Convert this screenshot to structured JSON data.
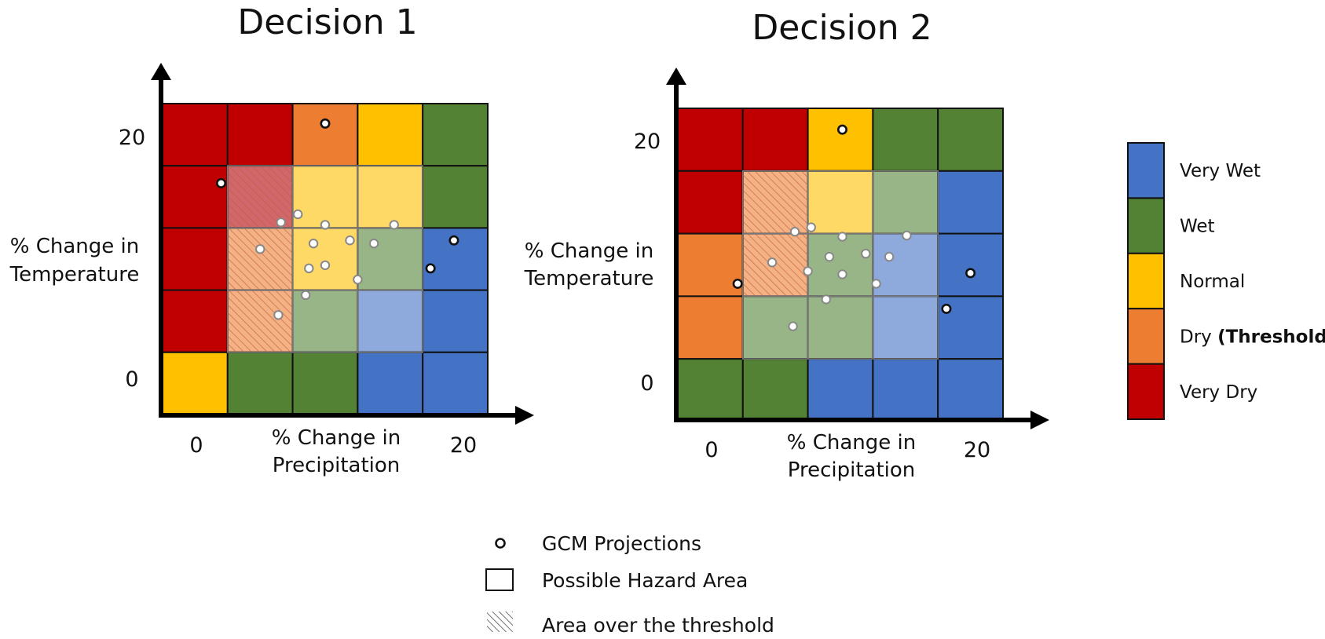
{
  "colors": {
    "very_wet": "#4472C4",
    "wet": "#548235",
    "normal": "#FFC000",
    "dry_threshold": "#ED7D31",
    "very_dry": "#C00000",
    "very_wet_faded": "#8EA9DB",
    "wet_faded": "#98B587",
    "normal_faded": "#FFD966",
    "dry_faded": "#F4B183",
    "very_dry_faded": "#D2676B"
  },
  "decisions": [
    {
      "title": "Decision 1",
      "ylabel_line1": "% Change in",
      "ylabel_line2": "Temperature",
      "xlabel_line1": "% Change in",
      "xlabel_line2": "Precipitation",
      "x_ticks": [
        "0",
        "20"
      ],
      "y_ticks": [
        "0",
        "20"
      ],
      "grid": [
        [
          "very_dry",
          "very_dry",
          "dry_threshold",
          "normal",
          "wet"
        ],
        [
          "very_dry",
          "very_dry_faded",
          "normal_faded",
          "normal_faded",
          "wet"
        ],
        [
          "very_dry",
          "dry_faded",
          "normal_faded",
          "wet_faded",
          "very_wet"
        ],
        [
          "very_dry",
          "dry_faded",
          "wet_faded",
          "very_wet_faded",
          "very_wet"
        ],
        [
          "normal",
          "wet",
          "wet",
          "very_wet",
          "very_wet"
        ]
      ],
      "hazard_cells": [
        [
          1,
          1
        ],
        [
          1,
          2
        ],
        [
          1,
          3
        ],
        [
          2,
          1
        ],
        [
          2,
          2
        ],
        [
          2,
          3
        ],
        [
          3,
          1
        ],
        [
          3,
          2
        ],
        [
          3,
          3
        ]
      ],
      "threshold_cells": [
        [
          1,
          1
        ],
        [
          2,
          1
        ],
        [
          3,
          1
        ]
      ],
      "projections_outside": [
        [
          0.9,
          3.72
        ],
        [
          2.5,
          4.68
        ],
        [
          4.48,
          2.8
        ],
        [
          4.12,
          2.35
        ]
      ],
      "projections_inside": [
        [
          1.82,
          3.09
        ],
        [
          2.08,
          3.22
        ],
        [
          2.5,
          3.05
        ],
        [
          3.56,
          3.05
        ],
        [
          1.5,
          2.66
        ],
        [
          2.32,
          2.75
        ],
        [
          2.88,
          2.8
        ],
        [
          3.25,
          2.75
        ],
        [
          2.25,
          2.35
        ],
        [
          2.5,
          2.4
        ],
        [
          3.0,
          2.17
        ],
        [
          2.2,
          1.92
        ],
        [
          1.78,
          1.6
        ]
      ]
    },
    {
      "title": "Decision 2",
      "ylabel_line1": "% Change in",
      "ylabel_line2": "Temperature",
      "xlabel_line1": "% Change in",
      "xlabel_line2": "Precipitation",
      "x_ticks": [
        "0",
        "20"
      ],
      "y_ticks": [
        "0",
        "20"
      ],
      "grid": [
        [
          "very_dry",
          "very_dry",
          "normal",
          "wet",
          "wet"
        ],
        [
          "very_dry",
          "dry_faded",
          "normal_faded",
          "wet_faded",
          "very_wet"
        ],
        [
          "dry_threshold",
          "dry_faded",
          "wet_faded",
          "very_wet_faded",
          "very_wet"
        ],
        [
          "dry_threshold",
          "wet_faded",
          "wet_faded",
          "very_wet_faded",
          "very_wet"
        ],
        [
          "wet",
          "wet",
          "very_wet",
          "very_wet",
          "very_wet"
        ]
      ],
      "hazard_cells": [
        [
          1,
          1
        ],
        [
          1,
          2
        ],
        [
          1,
          3
        ],
        [
          2,
          1
        ],
        [
          2,
          2
        ],
        [
          2,
          3
        ],
        [
          3,
          1
        ],
        [
          3,
          2
        ],
        [
          3,
          3
        ]
      ],
      "threshold_cells": [
        [
          1,
          1
        ],
        [
          2,
          1
        ]
      ],
      "projections_outside": [
        [
          0.92,
          2.2
        ],
        [
          2.53,
          4.66
        ],
        [
          4.5,
          2.37
        ],
        [
          4.13,
          1.8
        ]
      ],
      "projections_inside": [
        [
          1.8,
          3.03
        ],
        [
          2.05,
          3.1
        ],
        [
          2.53,
          2.95
        ],
        [
          3.52,
          2.97
        ],
        [
          1.45,
          2.54
        ],
        [
          2.33,
          2.63
        ],
        [
          2.89,
          2.68
        ],
        [
          3.25,
          2.63
        ],
        [
          2.0,
          2.4
        ],
        [
          2.53,
          2.35
        ],
        [
          3.05,
          2.2
        ],
        [
          2.28,
          1.95
        ],
        [
          1.77,
          1.52
        ]
      ]
    }
  ],
  "legend": {
    "items": [
      {
        "key": "very_wet",
        "label": "Very Wet",
        "suffix": ""
      },
      {
        "key": "wet",
        "label": "Wet",
        "suffix": ""
      },
      {
        "key": "normal",
        "label": "Normal",
        "suffix": ""
      },
      {
        "key": "dry_threshold",
        "label": "Dry ",
        "suffix": "(Threshold)"
      },
      {
        "key": "very_dry",
        "label": "Very Dry",
        "suffix": ""
      }
    ]
  },
  "bottom_legend": {
    "gcm": "GCM Projections",
    "hazard": "Possible Hazard Area",
    "threshold": "Area over the threshold"
  }
}
